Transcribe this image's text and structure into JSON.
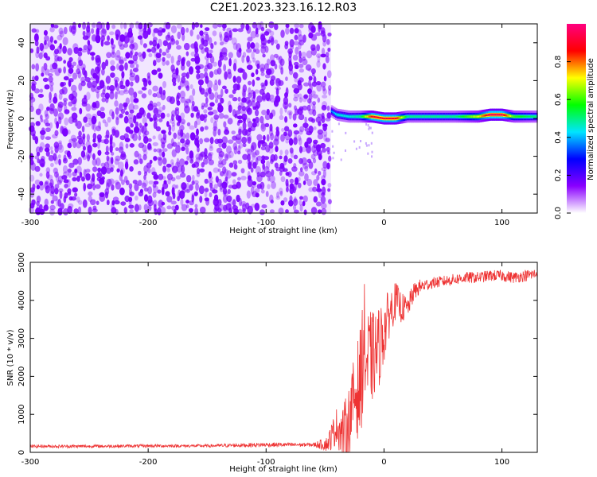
{
  "title": "C2E1.2023.323.16.12.R03",
  "chart_data": [
    {
      "type": "heatmap",
      "xlabel": "Height of straight line (km)",
      "ylabel": "Frequency (Hz)",
      "xlim": [
        -300,
        130
      ],
      "ylim": [
        -50,
        50
      ],
      "x_ticks": [
        -300,
        -200,
        -100,
        0,
        100
      ],
      "y_ticks": [
        -40,
        -20,
        0,
        20,
        40
      ],
      "colorbar": {
        "label": "Normalized spectral amplitude",
        "range": [
          0,
          1
        ],
        "ticks": [
          0.0,
          0.2,
          0.4,
          0.6,
          0.8
        ],
        "tick_labels": [
          "0.0",
          "0.2",
          "0.4",
          "0.6",
          "0.8"
        ],
        "colors": [
          "#ffffff",
          "#8a00ff",
          "#0000ff",
          "#00e5ff",
          "#00ff00",
          "#ffff00",
          "#ff0000",
          "#ff0080"
        ]
      },
      "noise_region": {
        "x_range": [
          -300,
          -45
        ],
        "freq_range": [
          -50,
          50
        ],
        "amplitude_range": [
          0.0,
          0.15
        ],
        "color": "#7b00ff"
      },
      "signal_band": {
        "x": [
          -45,
          -40,
          -30,
          -20,
          -10,
          0,
          10,
          20,
          40,
          60,
          80,
          90,
          100,
          110,
          130
        ],
        "center_freq": [
          4,
          2,
          1,
          1,
          1,
          0,
          0,
          1,
          1,
          1,
          1,
          2,
          2,
          1,
          1
        ],
        "amplitude": [
          0.35,
          0.45,
          0.45,
          0.5,
          0.9,
          0.9,
          0.9,
          0.5,
          0.5,
          0.5,
          0.7,
          0.95,
          0.95,
          0.6,
          0.5
        ]
      }
    },
    {
      "type": "line",
      "xlabel": "Height of straight line (km)",
      "ylabel": "SNR (10 * v/v)",
      "xlim": [
        -300,
        130
      ],
      "ylim": [
        0,
        5000
      ],
      "x_ticks": [
        -300,
        -200,
        -100,
        0,
        100
      ],
      "y_ticks": [
        0,
        1000,
        2000,
        3000,
        4000,
        5000
      ],
      "color": "#ee3333",
      "x": [
        -300,
        -250,
        -200,
        -150,
        -100,
        -60,
        -48,
        -45,
        -40,
        -35,
        -30,
        -25,
        -20,
        -17,
        -15,
        -10,
        -5,
        0,
        5,
        10,
        15,
        20,
        25,
        30,
        40,
        50,
        60,
        70,
        80,
        90,
        100,
        110,
        120,
        130
      ],
      "y": [
        160,
        160,
        170,
        170,
        200,
        200,
        220,
        400,
        700,
        500,
        800,
        1500,
        1800,
        3000,
        2300,
        2500,
        2700,
        3200,
        3700,
        4000,
        3800,
        3800,
        4200,
        4350,
        4450,
        4500,
        4550,
        4600,
        4600,
        4650,
        4650,
        4600,
        4650,
        4700
      ],
      "noise_amplitude": [
        40,
        40,
        40,
        40,
        60,
        50,
        200,
        350,
        500,
        700,
        900,
        1100,
        1500,
        1600,
        1500,
        1200,
        1100,
        900,
        600,
        500,
        400,
        300,
        250,
        200,
        150,
        150,
        150,
        150,
        150,
        150,
        150,
        150,
        150,
        150
      ]
    }
  ]
}
